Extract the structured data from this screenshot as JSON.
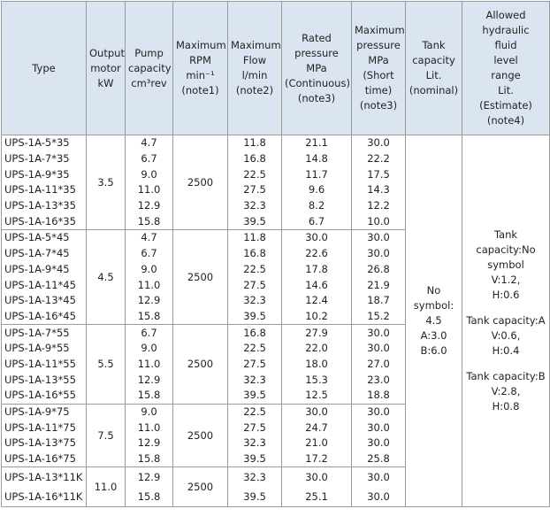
{
  "header": {
    "columns": [
      {
        "lines": [
          "Type"
        ]
      },
      {
        "lines": [
          "Output",
          "motor",
          "kW"
        ]
      },
      {
        "lines": [
          "Pump",
          "capacity",
          "cm³rev"
        ]
      },
      {
        "lines": [
          "Maximum",
          "RPM",
          "min⁻¹",
          "(note1)"
        ]
      },
      {
        "lines": [
          "Maximum",
          "Flow",
          "l/min",
          "(note2)"
        ]
      },
      {
        "lines": [
          "Rated",
          "pressure",
          "MPa",
          "(Continuous)",
          "(note3)"
        ]
      },
      {
        "lines": [
          "Maximum",
          "pressure",
          "MPa",
          "(Short",
          "time)",
          "(note3)"
        ]
      },
      {
        "lines": [
          "Tank",
          "capacity",
          "Lit.",
          "(nominal)"
        ]
      },
      {
        "lines": [
          "Allowed",
          "hydraulic",
          "fluid",
          "level",
          "range",
          "Lit.",
          "(Estimate)",
          "(note4)"
        ]
      }
    ]
  },
  "groups": [
    {
      "output": "3.5",
      "rpm": "2500",
      "rows": [
        {
          "type": "UPS-1A-5*35",
          "capacity": "4.7",
          "flow": "11.8",
          "rated": "21.1",
          "max": "30.0"
        },
        {
          "type": "UPS-1A-7*35",
          "capacity": "6.7",
          "flow": "16.8",
          "rated": "14.8",
          "max": "22.2"
        },
        {
          "type": "UPS-1A-9*35",
          "capacity": "9.0",
          "flow": "22.5",
          "rated": "11.7",
          "max": "17.5"
        },
        {
          "type": "UPS-1A-11*35",
          "capacity": "11.0",
          "flow": "27.5",
          "rated": "9.6",
          "max": "14.3"
        },
        {
          "type": "UPS-1A-13*35",
          "capacity": "12.9",
          "flow": "32.3",
          "rated": "8.2",
          "max": "12.2"
        },
        {
          "type": "UPS-1A-16*35",
          "capacity": "15.8",
          "flow": "39.5",
          "rated": "6.7",
          "max": "10.0"
        }
      ]
    },
    {
      "output": "4.5",
      "rpm": "2500",
      "rows": [
        {
          "type": "UPS-1A-5*45",
          "capacity": "4.7",
          "flow": "11.8",
          "rated": "30.0",
          "max": "30.0"
        },
        {
          "type": "UPS-1A-7*45",
          "capacity": "6.7",
          "flow": "16.8",
          "rated": "22.6",
          "max": "30.0"
        },
        {
          "type": "UPS-1A-9*45",
          "capacity": "9.0",
          "flow": "22.5",
          "rated": "17.8",
          "max": "26.8"
        },
        {
          "type": "UPS-1A-11*45",
          "capacity": "11.0",
          "flow": "27.5",
          "rated": "14.6",
          "max": "21.9"
        },
        {
          "type": "UPS-1A-13*45",
          "capacity": "12.9",
          "flow": "32.3",
          "rated": "12.4",
          "max": "18.7"
        },
        {
          "type": "UPS-1A-16*45",
          "capacity": "15.8",
          "flow": "39.5",
          "rated": "10.2",
          "max": "15.2"
        }
      ]
    },
    {
      "output": "5.5",
      "rpm": "2500",
      "rows": [
        {
          "type": "UPS-1A-7*55",
          "capacity": "6.7",
          "flow": "16.8",
          "rated": "27.9",
          "max": "30.0"
        },
        {
          "type": "UPS-1A-9*55",
          "capacity": "9.0",
          "flow": "22.5",
          "rated": "22.0",
          "max": "30.0"
        },
        {
          "type": "UPS-1A-11*55",
          "capacity": "11.0",
          "flow": "27.5",
          "rated": "18.0",
          "max": "27.0"
        },
        {
          "type": "UPS-1A-13*55",
          "capacity": "12.9",
          "flow": "32.3",
          "rated": "15.3",
          "max": "23.0"
        },
        {
          "type": "UPS-1A-16*55",
          "capacity": "15.8",
          "flow": "39.5",
          "rated": "12.5",
          "max": "18.8"
        }
      ]
    },
    {
      "output": "7.5",
      "rpm": "2500",
      "rows": [
        {
          "type": "UPS-1A-9*75",
          "capacity": "9.0",
          "flow": "22.5",
          "rated": "30.0",
          "max": "30.0"
        },
        {
          "type": "UPS-1A-11*75",
          "capacity": "11.0",
          "flow": "27.5",
          "rated": "24.7",
          "max": "30.0"
        },
        {
          "type": "UPS-1A-13*75",
          "capacity": "12.9",
          "flow": "32.3",
          "rated": "21.0",
          "max": "30.0"
        },
        {
          "type": "UPS-1A-16*75",
          "capacity": "15.8",
          "flow": "39.5",
          "rated": "17.2",
          "max": "25.8"
        }
      ]
    },
    {
      "output": "11.0",
      "rpm": "2500",
      "rows": [
        {
          "type": "UPS-1A-13*11K",
          "capacity": "12.9",
          "flow": "32.3",
          "rated": "30.0",
          "max": "30.0"
        },
        {
          "type": "UPS-1A-16*11K",
          "capacity": "15.8",
          "flow": "39.5",
          "rated": "25.1",
          "max": "30.0"
        }
      ]
    }
  ],
  "tank": {
    "lines": [
      "No",
      "symbol:",
      "4.5",
      "A:3.0",
      "B:6.0"
    ]
  },
  "level": {
    "blocks": [
      {
        "lines": [
          "Tank",
          "capacity:No",
          "symbol",
          "V:1.2,",
          "H:0.6"
        ]
      },
      {
        "lines": [
          "Tank capacity:A",
          "V:0.6,",
          "H:0.4"
        ]
      },
      {
        "lines": [
          "Tank capacity:B",
          "V:2.8,",
          "H:0.8"
        ]
      }
    ]
  }
}
